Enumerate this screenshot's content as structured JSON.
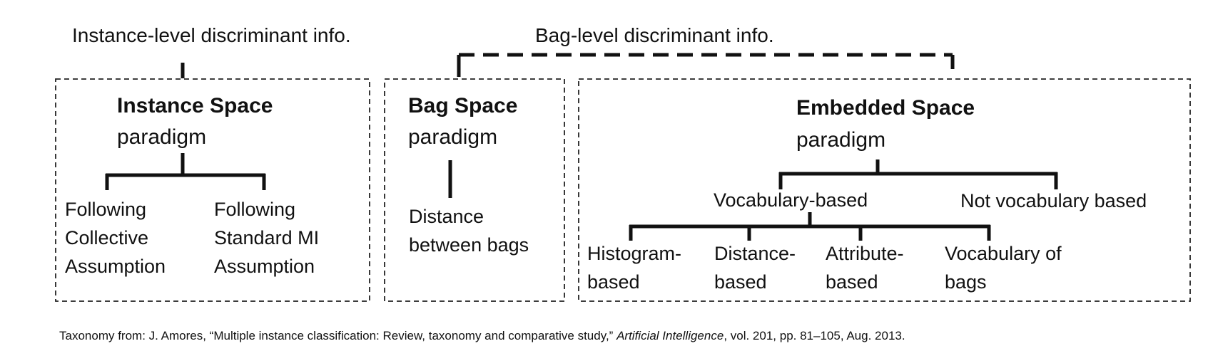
{
  "headers": {
    "instance_level": "Instance-level discriminant info.",
    "bag_level": "Bag-level discriminant info."
  },
  "instance_space": {
    "title": "Instance Space",
    "subtitle": "paradigm",
    "leaf_collective": "Following Collective Assumption",
    "leaf_standard": "Following Standard MI Assumption"
  },
  "bag_space": {
    "title": "Bag Space",
    "subtitle": "paradigm",
    "leaf": "Distance between bags"
  },
  "embedded_space": {
    "title": "Embedded Space",
    "subtitle": "paradigm",
    "vocabulary_based": "Vocabulary-based",
    "not_vocabulary_based": "Not vocabulary based",
    "leaf_histogram": "Histogram- based",
    "leaf_distance": "Distance- based",
    "leaf_attribute": "Attribute- based",
    "leaf_vocabulary_of_bags": "Vocabulary of bags"
  },
  "citation": {
    "prefix": "Taxonomy from: J. Amores, “Multiple instance classification: Review, taxonomy and comparative study,” ",
    "journal": "Artificial Intelligence",
    "suffix": ", vol. 201, pp. 81–105, Aug. 2013."
  }
}
